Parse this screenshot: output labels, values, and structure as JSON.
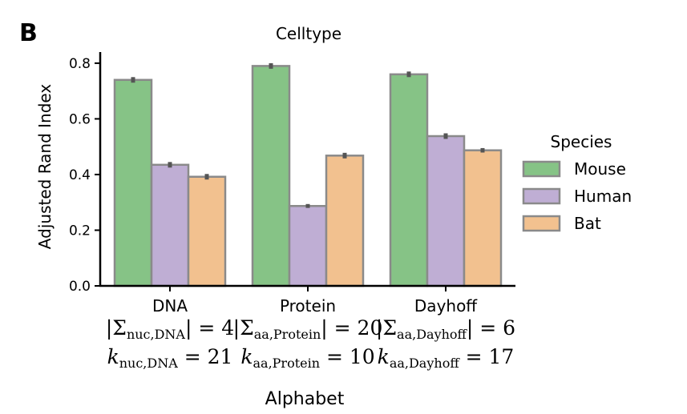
{
  "chart_data": {
    "type": "bar",
    "panel_label": "B",
    "title": "Celltype",
    "xlabel": "Alphabet",
    "ylabel": "Adjusted Rand Index",
    "ylim": [
      0,
      0.84
    ],
    "yticks": [
      "0.0",
      "0.2",
      "0.4",
      "0.6",
      "0.8"
    ],
    "categories": [
      "DNA",
      "Protein",
      "Dayhoff"
    ],
    "series": [
      {
        "name": "Mouse",
        "color": "#86c386",
        "values": [
          0.74,
          0.79,
          0.76
        ],
        "err": [
          0.01,
          0.01,
          0.01
        ]
      },
      {
        "name": "Human",
        "color": "#bfaed4",
        "values": [
          0.435,
          0.287,
          0.538
        ],
        "err": [
          0.01,
          0.007,
          0.01
        ]
      },
      {
        "name": "Bat",
        "color": "#f2c18f",
        "values": [
          0.392,
          0.468,
          0.487
        ],
        "err": [
          0.01,
          0.01,
          0.008
        ]
      }
    ],
    "legend": {
      "title": "Species",
      "placement": "right"
    },
    "annotations": [
      {
        "sigma_sub": "nuc,DNA",
        "sigma_value": "4",
        "k_sub": "nuc,DNA",
        "k_value": "21"
      },
      {
        "sigma_sub": "aa,Protein",
        "sigma_value": "20",
        "k_sub": "aa,Protein",
        "k_value": "10"
      },
      {
        "sigma_sub": "aa,Dayhoff",
        "sigma_value": "6",
        "k_sub": "aa,Dayhoff",
        "k_value": "17"
      }
    ]
  }
}
